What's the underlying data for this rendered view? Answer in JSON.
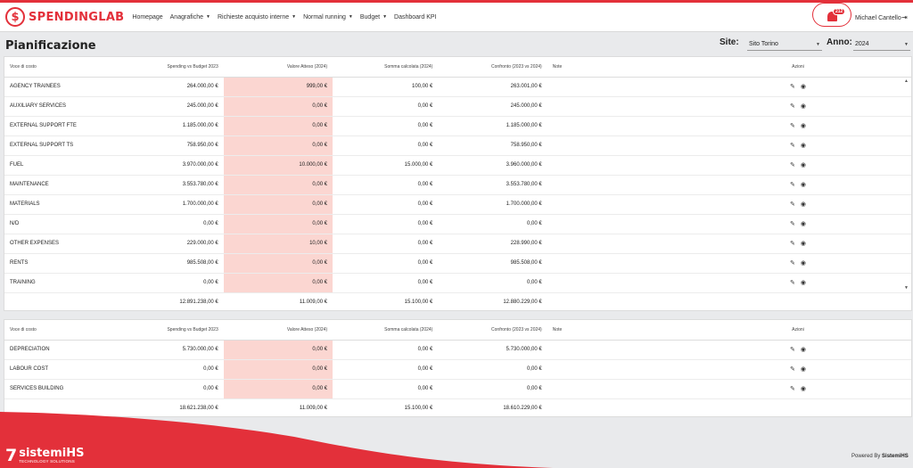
{
  "app": {
    "brand": "SPENDINGLAB",
    "brand_symbol": "$"
  },
  "nav": {
    "items": [
      {
        "label": "Homepage",
        "has_dropdown": false
      },
      {
        "label": "Anagrafiche",
        "has_dropdown": true
      },
      {
        "label": "Richieste acquisto interne",
        "has_dropdown": true
      },
      {
        "label": "Normal running",
        "has_dropdown": true
      },
      {
        "label": "Budget",
        "has_dropdown": true
      },
      {
        "label": "Dashboard KPI",
        "has_dropdown": false
      }
    ],
    "notifications_count": "212",
    "user_name": "Michael Cantello",
    "logout_glyph": "⇥"
  },
  "page": {
    "title": "Pianificazione",
    "site_label": "Site:",
    "site_value": "Sito Torino",
    "year_label": "Anno:",
    "year_value": "2024"
  },
  "columns": [
    "Voce di costo",
    "Spending vs Budget 2023",
    "Valore Atteso (2024)",
    "Somma calcolata (2024)",
    "Confronto (2023 vs 2024)",
    "Note",
    "Azioni"
  ],
  "table1": {
    "rows": [
      {
        "voce": "AGENCY TRAINEES",
        "spending": "264.000,00 €",
        "atteso": "999,00 €",
        "somma": "100,00 €",
        "confronto": "263.001,00 €",
        "note": ""
      },
      {
        "voce": "AUXILIARY SERVICES",
        "spending": "245.000,00 €",
        "atteso": "0,00 €",
        "somma": "0,00 €",
        "confronto": "245.000,00 €",
        "note": ""
      },
      {
        "voce": "EXTERNAL SUPPORT FTE",
        "spending": "1.185.000,00 €",
        "atteso": "0,00 €",
        "somma": "0,00 €",
        "confronto": "1.185.000,00 €",
        "note": ""
      },
      {
        "voce": "EXTERNAL SUPPORT TS",
        "spending": "758.950,00 €",
        "atteso": "0,00 €",
        "somma": "0,00 €",
        "confronto": "758.950,00 €",
        "note": ""
      },
      {
        "voce": "FUEL",
        "spending": "3.970.000,00 €",
        "atteso": "10.000,00 €",
        "somma": "15.000,00 €",
        "confronto": "3.960.000,00 €",
        "note": ""
      },
      {
        "voce": "MAINTENANCE",
        "spending": "3.553.780,00 €",
        "atteso": "0,00 €",
        "somma": "0,00 €",
        "confronto": "3.553.780,00 €",
        "note": ""
      },
      {
        "voce": "MATERIALS",
        "spending": "1.700.000,00 €",
        "atteso": "0,00 €",
        "somma": "0,00 €",
        "confronto": "1.700.000,00 €",
        "note": ""
      },
      {
        "voce": "N/D",
        "spending": "0,00 €",
        "atteso": "0,00 €",
        "somma": "0,00 €",
        "confronto": "0,00 €",
        "note": ""
      },
      {
        "voce": "OTHER EXPENSES",
        "spending": "229.000,00 €",
        "atteso": "10,00 €",
        "somma": "0,00 €",
        "confronto": "228.990,00 €",
        "note": ""
      },
      {
        "voce": "RENTS",
        "spending": "985.508,00 €",
        "atteso": "0,00 €",
        "somma": "0,00 €",
        "confronto": "985.508,00 €",
        "note": ""
      },
      {
        "voce": "TRAINING",
        "spending": "0,00 €",
        "atteso": "0,00 €",
        "somma": "0,00 €",
        "confronto": "0,00 €",
        "note": ""
      }
    ],
    "totals": {
      "spending": "12.891.238,00 €",
      "atteso": "11.009,00 €",
      "somma": "15.100,00 €",
      "confronto": "12.880.229,00 €"
    }
  },
  "table2": {
    "rows": [
      {
        "voce": "DEPRECIATION",
        "spending": "5.730.000,00 €",
        "atteso": "0,00 €",
        "somma": "0,00 €",
        "confronto": "5.730.000,00 €",
        "note": ""
      },
      {
        "voce": "LABOUR COST",
        "spending": "0,00 €",
        "atteso": "0,00 €",
        "somma": "0,00 €",
        "confronto": "0,00 €",
        "note": ""
      },
      {
        "voce": "SERVICES BUILDING",
        "spending": "0,00 €",
        "atteso": "0,00 €",
        "somma": "0,00 €",
        "confronto": "0,00 €",
        "note": ""
      }
    ],
    "totals": {
      "spending": "18.621.238,00 €",
      "atteso": "11.009,00 €",
      "somma": "15.100,00 €",
      "confronto": "18.610.229,00 €"
    }
  },
  "actions": {
    "edit_icon": "pencil-icon",
    "view_icon": "eye-icon",
    "edit_glyph": "✎",
    "view_glyph": "◉"
  },
  "footer": {
    "company_mark": "7",
    "company_name": "sistemiHS",
    "company_tagline": "TECHNOLOGY SOLUTIONS",
    "powered_prefix": "Powered By",
    "powered_name": "SistemiHS"
  },
  "colors": {
    "accent": "#e3303a",
    "highlight": "#fbd6d1",
    "background": "#e9eaec"
  }
}
